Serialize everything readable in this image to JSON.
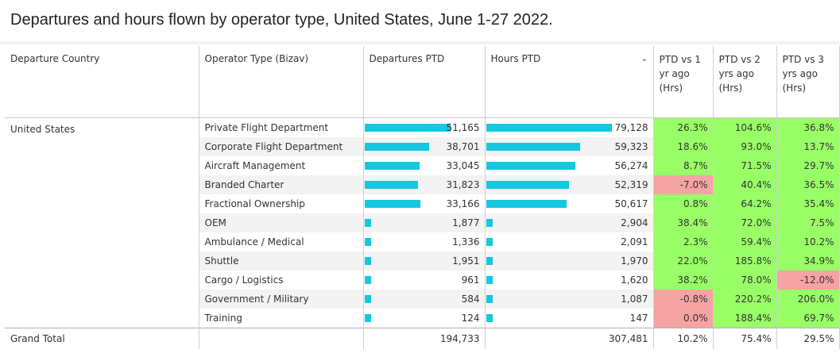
{
  "title": "Departures and hours flown by operator type, United States, June 1-27 2022.",
  "headers": {
    "country": "Departure Country",
    "operator": "Operator Type (Bizav)",
    "departures": "Departures PTD",
    "hours": "Hours PTD",
    "pct1": "PTD vs 1 yr ago (Hrs)",
    "pct2": "PTD vs 2 yrs ago (Hrs)",
    "pct3": "PTD vs 3 yrs ago (Hrs)"
  },
  "icons": {
    "sort": "chevron-down-icon"
  },
  "colors": {
    "bar": "#14c8e0",
    "positive": "#99ff66",
    "negative": "#f5a3a3"
  },
  "chart_data": {
    "type": "table",
    "title": "Departures and hours flown by operator type, United States, June 1-27 2022.",
    "country": "United States",
    "bar_max": {
      "departures": 51165,
      "hours": 79128
    },
    "rows": [
      {
        "operator": "Private Flight Department",
        "departures": 51165,
        "departures_label": "51,165",
        "hours": 79128,
        "hours_label": "79,128",
        "pct_1yr": "26.3%",
        "pct_2yr": "104.6%",
        "pct_3yr": "36.8%"
      },
      {
        "operator": "Corporate Flight Department",
        "departures": 38701,
        "departures_label": "38,701",
        "hours": 59323,
        "hours_label": "59,323",
        "pct_1yr": "18.6%",
        "pct_2yr": "93.0%",
        "pct_3yr": "13.7%"
      },
      {
        "operator": "Aircraft Management",
        "departures": 33045,
        "departures_label": "33,045",
        "hours": 56274,
        "hours_label": "56,274",
        "pct_1yr": "8.7%",
        "pct_2yr": "71.5%",
        "pct_3yr": "29.7%"
      },
      {
        "operator": "Branded Charter",
        "departures": 31823,
        "departures_label": "31,823",
        "hours": 52319,
        "hours_label": "52,319",
        "pct_1yr": "-7.0%",
        "pct_2yr": "40.4%",
        "pct_3yr": "36.5%"
      },
      {
        "operator": "Fractional Ownership",
        "departures": 33166,
        "departures_label": "33,166",
        "hours": 50617,
        "hours_label": "50,617",
        "pct_1yr": "0.8%",
        "pct_2yr": "64.2%",
        "pct_3yr": "35.4%"
      },
      {
        "operator": "OEM",
        "departures": 1877,
        "departures_label": "1,877",
        "hours": 2904,
        "hours_label": "2,904",
        "pct_1yr": "38.4%",
        "pct_2yr": "72.0%",
        "pct_3yr": "7.5%"
      },
      {
        "operator": "Ambulance / Medical",
        "departures": 1336,
        "departures_label": "1,336",
        "hours": 2091,
        "hours_label": "2,091",
        "pct_1yr": "2.3%",
        "pct_2yr": "59.4%",
        "pct_3yr": "10.2%"
      },
      {
        "operator": "Shuttle",
        "departures": 1951,
        "departures_label": "1,951",
        "hours": 1970,
        "hours_label": "1,970",
        "pct_1yr": "22.0%",
        "pct_2yr": "185.8%",
        "pct_3yr": "34.9%"
      },
      {
        "operator": "Cargo / Logistics",
        "departures": 961,
        "departures_label": "961",
        "hours": 1620,
        "hours_label": "1,620",
        "pct_1yr": "38.2%",
        "pct_2yr": "78.0%",
        "pct_3yr": "-12.0%"
      },
      {
        "operator": "Government / Military",
        "departures": 584,
        "departures_label": "584",
        "hours": 1087,
        "hours_label": "1,087",
        "pct_1yr": "-0.8%",
        "pct_2yr": "220.2%",
        "pct_3yr": "206.0%"
      },
      {
        "operator": "Training",
        "departures": 124,
        "departures_label": "124",
        "hours": 147,
        "hours_label": "147",
        "pct_1yr": "0.0%",
        "pct_2yr": "188.4%",
        "pct_3yr": "69.7%"
      }
    ],
    "grand_total": {
      "label": "Grand Total",
      "departures": "194,733",
      "hours": "307,481",
      "pct_1yr": "10.2%",
      "pct_2yr": "75.4%",
      "pct_3yr": "29.5%"
    },
    "negative_highlight": [
      {
        "row": "Branded Charter",
        "column": "pct_1yr"
      },
      {
        "row": "Cargo / Logistics",
        "column": "pct_3yr"
      },
      {
        "row": "Government / Military",
        "column": "pct_1yr"
      },
      {
        "row": "Training",
        "column": "pct_1yr"
      }
    ]
  }
}
